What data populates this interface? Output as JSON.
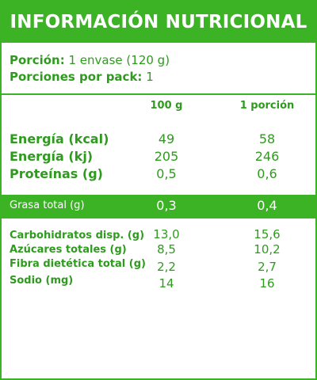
{
  "title": "INFORMACIÓN NUTRICIONAL",
  "serving": {
    "portion_label": "Porción:",
    "portion_value": "1 envase (120 g)",
    "per_pack_label": "Porciones por pack:",
    "per_pack_value": "1"
  },
  "columns": {
    "col1": "100 g",
    "col2": "1 porción"
  },
  "rows_main": [
    {
      "label": "Energía (kcal)",
      "v100": "49",
      "vportion": "58"
    },
    {
      "label": "Energía (kj)",
      "v100": "205",
      "vportion": "246"
    },
    {
      "label": "Proteínas (g)",
      "v100": "0,5",
      "vportion": "0,6"
    }
  ],
  "highlight": {
    "label": "Grasa total (g)",
    "v100": "0,3",
    "vportion": "0,4"
  },
  "rows_detail": [
    {
      "label": "Carbohidratos disp. (g)",
      "v100": "13,0",
      "vportion": "15,6"
    },
    {
      "label": "Azúcares totales (g)",
      "v100": "8,5",
      "vportion": "10,2"
    },
    {
      "label": "Fibra dietética total (g)",
      "v100": "2,2",
      "vportion": "2,7"
    },
    {
      "label": "Sodio (mg)",
      "v100": "14",
      "vportion": "16"
    }
  ],
  "colors": {
    "brand_green": "#3bb324",
    "text_green": "#2e9b1e",
    "background": "#ffffff"
  }
}
